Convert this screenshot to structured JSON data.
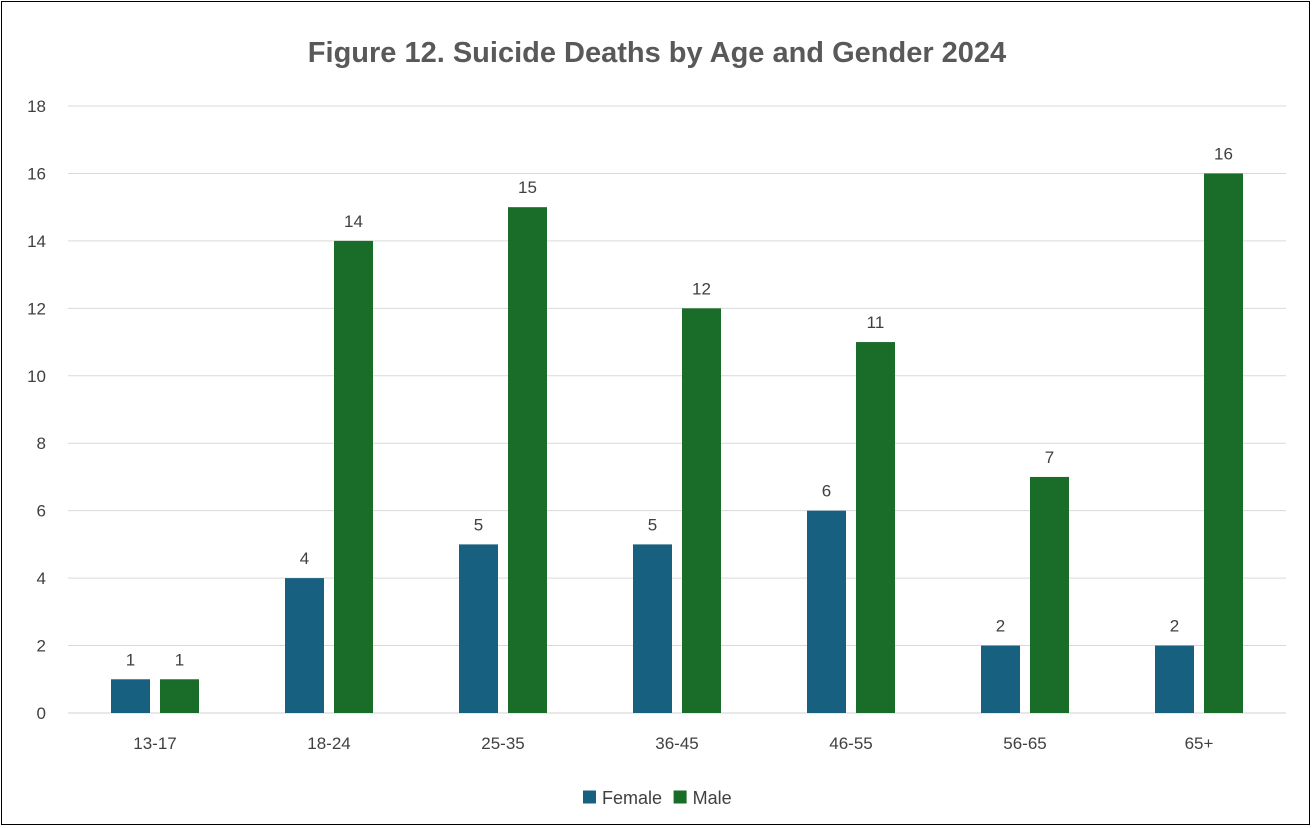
{
  "chart_data": {
    "type": "bar",
    "title": "Figure 12.  Suicide Deaths by Age and Gender 2024",
    "categories": [
      "13-17",
      "18-24",
      "25-35",
      "36-45",
      "46-55",
      "56-65",
      "65+"
    ],
    "series": [
      {
        "name": "Female",
        "color": "#17607f",
        "values": [
          1,
          4,
          5,
          5,
          6,
          2,
          2
        ]
      },
      {
        "name": "Male",
        "color": "#1a6d28",
        "values": [
          1,
          14,
          15,
          12,
          11,
          7,
          16
        ]
      }
    ],
    "ylim": [
      0,
      18
    ],
    "yticks": [
      "0",
      "2",
      "4",
      "6",
      "8",
      "10",
      "12",
      "14",
      "16",
      "18"
    ],
    "grid": true,
    "legend_position": "bottom-center",
    "data_labels": true
  }
}
